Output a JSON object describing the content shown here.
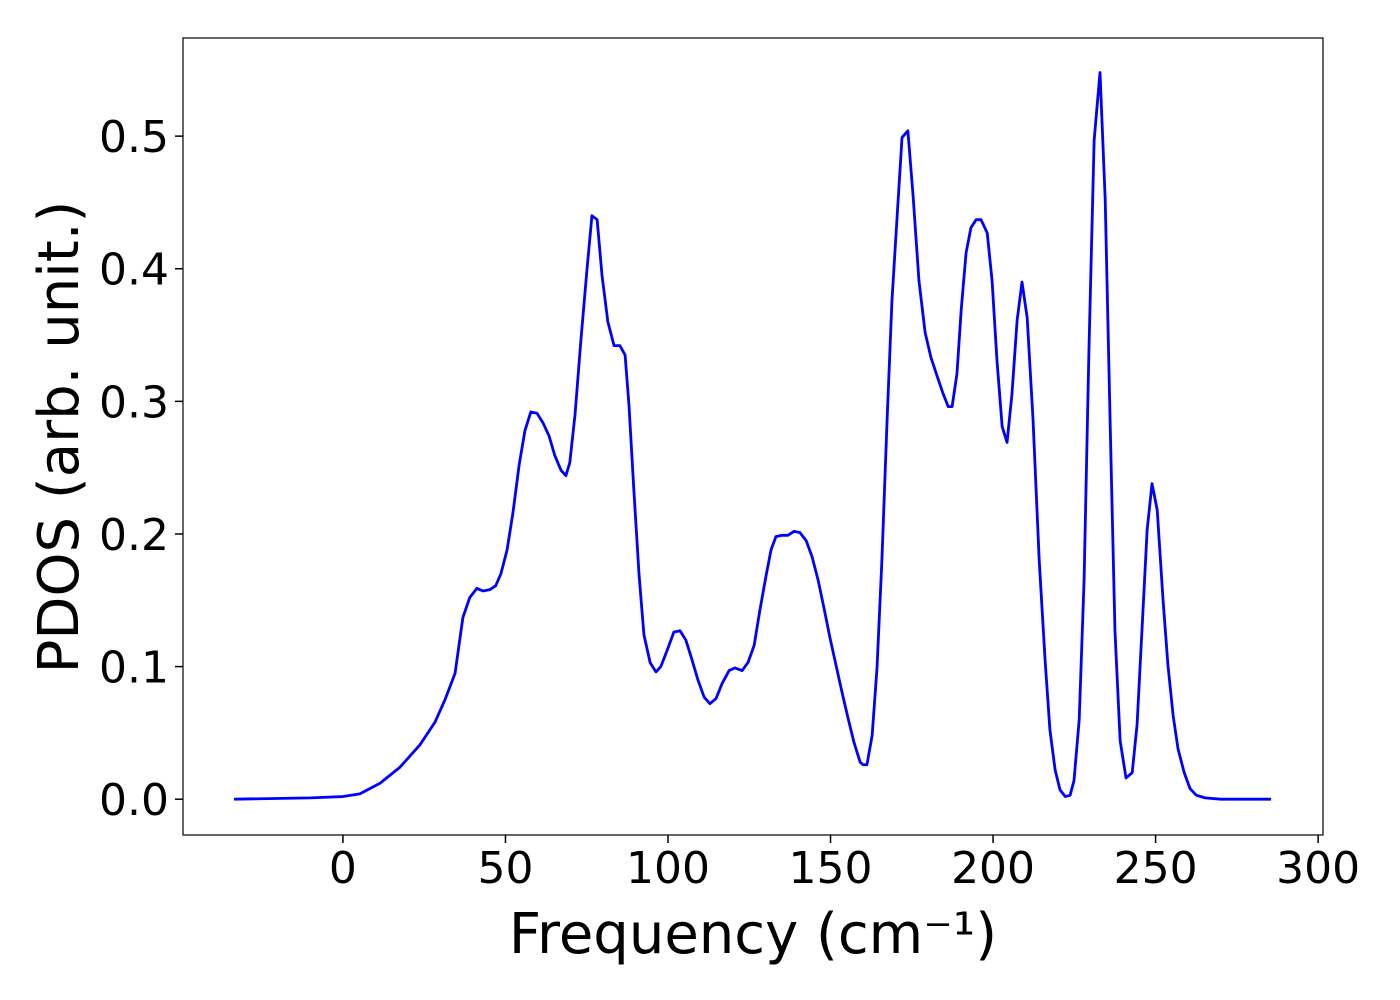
{
  "chart_data": {
    "type": "line",
    "xlabel": "Frequency (cm⁻¹)",
    "ylabel": "PDOS (arb. unit.)",
    "xlim": [
      -49.2,
      301.5
    ],
    "ylim": [
      -0.027,
      0.574
    ],
    "xticks": [
      0,
      50,
      100,
      150,
      200,
      250,
      300
    ],
    "yticks": [
      {
        "value": 0,
        "label": "0.0"
      },
      0.1,
      0.2,
      0.3,
      0.4,
      0.5
    ],
    "x": [
      -33.5,
      -10,
      0,
      5.2,
      11.4,
      17.5,
      23.7,
      28.3,
      31.4,
      34.5,
      36.9,
      39,
      41.2,
      43.1,
      45.2,
      47,
      48.6,
      50.5,
      52.3,
      54.2,
      56,
      57.8,
      59.7,
      61.5,
      63.4,
      65.2,
      67.1,
      68.6,
      69.8,
      71.4,
      73.2,
      75.1,
      76.6,
      78.2,
      79.7,
      81.5,
      83.4,
      85.2,
      86.8,
      88,
      89.5,
      91.1,
      92.6,
      94.5,
      96.3,
      97.8,
      99.7,
      101.8,
      103.7,
      105.5,
      107.4,
      109.2,
      111.1,
      112.9,
      114.8,
      116.6,
      118.8,
      120.6,
      122.8,
      124.6,
      126.5,
      128.3,
      130.2,
      131.7,
      133.2,
      135.1,
      136.9,
      138.8,
      140.6,
      142.5,
      144.3,
      146.2,
      148,
      149.8,
      151.7,
      153.5,
      155.4,
      157.2,
      159.1,
      160,
      161.2,
      162.8,
      164.3,
      165.8,
      167.4,
      168.9,
      170.5,
      172,
      173.8,
      175.4,
      177.2,
      179.1,
      180.9,
      182.8,
      184.6,
      186.2,
      187.4,
      188.9,
      190.2,
      191.7,
      193.2,
      194.8,
      196.3,
      198.2,
      199.7,
      201.2,
      202.8,
      204.3,
      205.8,
      207.4,
      208.9,
      210.5,
      212.3,
      214.2,
      216,
      217.5,
      219.1,
      220.6,
      222.2,
      223.7,
      224.9,
      226.5,
      228,
      229.5,
      231.1,
      232.9,
      234.5,
      236,
      237.5,
      239.1,
      240.9,
      242.8,
      244.3,
      245.8,
      247.4,
      248.9,
      250.5,
      252.3,
      253.8,
      255.4,
      256.9,
      258.8,
      260.6,
      262.5,
      265.2,
      270,
      285.5
    ],
    "series": [
      {
        "name": "PDOS",
        "color": "#0000ff",
        "values": [
          0,
          0.001,
          0.002,
          0.004,
          0.012,
          0.024,
          0.041,
          0.058,
          0.075,
          0.095,
          0.137,
          0.152,
          0.159,
          0.157,
          0.158,
          0.161,
          0.17,
          0.188,
          0.216,
          0.252,
          0.278,
          0.292,
          0.291,
          0.284,
          0.274,
          0.259,
          0.248,
          0.244,
          0.254,
          0.29,
          0.346,
          0.4,
          0.44,
          0.437,
          0.395,
          0.36,
          0.342,
          0.342,
          0.335,
          0.297,
          0.233,
          0.169,
          0.124,
          0.103,
          0.096,
          0.1,
          0.112,
          0.126,
          0.127,
          0.12,
          0.105,
          0.09,
          0.077,
          0.072,
          0.076,
          0.087,
          0.097,
          0.099,
          0.097,
          0.103,
          0.116,
          0.143,
          0.169,
          0.188,
          0.198,
          0.199,
          0.199,
          0.202,
          0.201,
          0.195,
          0.183,
          0.165,
          0.144,
          0.122,
          0.101,
          0.081,
          0.061,
          0.043,
          0.028,
          0.026,
          0.026,
          0.048,
          0.099,
          0.18,
          0.286,
          0.376,
          0.44,
          0.499,
          0.504,
          0.455,
          0.391,
          0.352,
          0.333,
          0.319,
          0.306,
          0.296,
          0.296,
          0.321,
          0.369,
          0.412,
          0.431,
          0.437,
          0.437,
          0.427,
          0.391,
          0.331,
          0.281,
          0.269,
          0.305,
          0.361,
          0.39,
          0.363,
          0.286,
          0.18,
          0.105,
          0.052,
          0.022,
          0.007,
          0.002,
          0.003,
          0.014,
          0.06,
          0.165,
          0.339,
          0.497,
          0.548,
          0.452,
          0.286,
          0.127,
          0.044,
          0.016,
          0.02,
          0.056,
          0.127,
          0.203,
          0.238,
          0.218,
          0.15,
          0.101,
          0.063,
          0.038,
          0.02,
          0.008,
          0.003,
          0.001,
          0,
          0
        ]
      }
    ]
  }
}
